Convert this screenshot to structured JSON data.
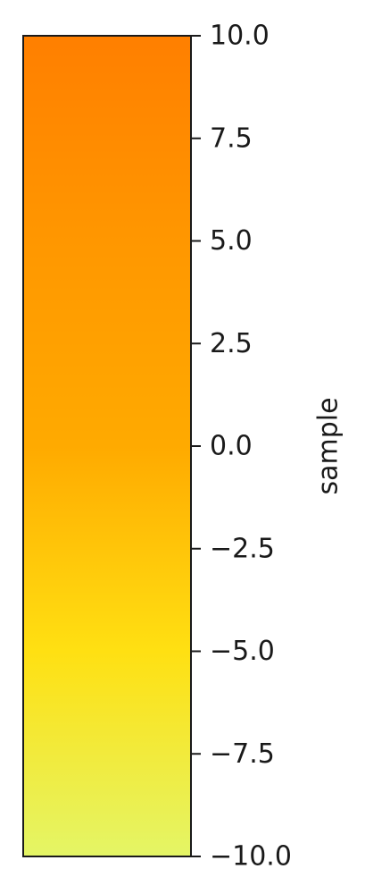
{
  "chart_data": {
    "type": "colorbar",
    "orientation": "vertical",
    "ylabel": "sample",
    "ylim": [
      -10.0,
      10.0
    ],
    "ticks": [
      {
        "value": 10.0,
        "label": "10.0"
      },
      {
        "value": 7.5,
        "label": "7.5"
      },
      {
        "value": 5.0,
        "label": "5.0"
      },
      {
        "value": 2.5,
        "label": "2.5"
      },
      {
        "value": 0.0,
        "label": "0.0"
      },
      {
        "value": -2.5,
        "label": "−2.5"
      },
      {
        "value": -5.0,
        "label": "−5.0"
      },
      {
        "value": -7.5,
        "label": "−7.5"
      },
      {
        "value": -10.0,
        "label": "−10.0"
      }
    ],
    "colormap": [
      {
        "value": -10.0,
        "color": "#e4f566"
      },
      {
        "value": -5.0,
        "color": "#ffe012"
      },
      {
        "value": 0.0,
        "color": "#ffaa00"
      },
      {
        "value": 5.0,
        "color": "#ff9700"
      },
      {
        "value": 10.0,
        "color": "#ff7f00"
      }
    ],
    "colors": {
      "frame": "#1a1a1a",
      "text": "#1a1a1a"
    }
  }
}
